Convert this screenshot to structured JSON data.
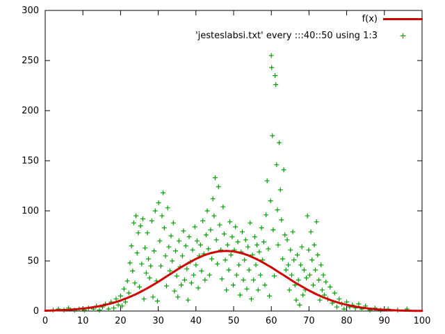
{
  "chart_data": {
    "type": "scatter",
    "title": "",
    "xlabel": "",
    "ylabel": "",
    "xlim": [
      0,
      100
    ],
    "ylim": [
      0,
      300
    ],
    "xticks": [
      0,
      10,
      20,
      30,
      40,
      50,
      60,
      70,
      80,
      90,
      100
    ],
    "yticks": [
      0,
      50,
      100,
      150,
      200,
      250,
      300
    ],
    "grid": false,
    "legend_position": "top-right-inside",
    "axis_color": "#000000",
    "series": [
      {
        "name": "f(x)",
        "type": "line",
        "color": "#d00000",
        "width": 3,
        "x": [
          0,
          2,
          4,
          6,
          8,
          10,
          12,
          14,
          16,
          18,
          20,
          22,
          24,
          26,
          28,
          30,
          32,
          34,
          36,
          38,
          40,
          42,
          44,
          46,
          48,
          50,
          52,
          54,
          56,
          58,
          60,
          62,
          64,
          66,
          68,
          70,
          72,
          74,
          76,
          78,
          80,
          82,
          84,
          86,
          88,
          90,
          92,
          94,
          96,
          98,
          100
        ],
        "y": [
          0.36,
          0.55,
          0.81,
          1.19,
          1.71,
          2.42,
          3.37,
          4.6,
          6.17,
          8.12,
          10.5,
          13.4,
          16.7,
          20.5,
          24.7,
          29.2,
          34,
          38.8,
          43.6,
          48,
          52,
          55.4,
          57.9,
          59.5,
          60,
          59.5,
          57.9,
          55.4,
          52,
          48,
          43.6,
          38.8,
          34,
          29.2,
          24.7,
          20.5,
          16.7,
          13.4,
          10.5,
          8.1,
          6.2,
          4.6,
          3.4,
          2.4,
          1.7,
          1.2,
          0.8,
          0.55,
          0.36,
          0.23,
          0.14
        ]
      },
      {
        "name": "'jesteslabsi.txt' every :::40::50 using 1:3",
        "type": "points",
        "marker": "plus",
        "color": "#00a000",
        "points": [
          [
            2.1,
            1
          ],
          [
            3.5,
            2
          ],
          [
            5,
            1
          ],
          [
            6.2,
            3
          ],
          [
            7.8,
            1
          ],
          [
            9,
            2
          ],
          [
            10.4,
            1
          ],
          [
            11.5,
            3
          ],
          [
            12.8,
            2
          ],
          [
            13.6,
            5
          ],
          [
            14.4,
            1
          ],
          [
            15.2,
            4
          ],
          [
            16,
            7
          ],
          [
            16.8,
            2
          ],
          [
            17.5,
            9
          ],
          [
            18.2,
            3
          ],
          [
            18.8,
            12
          ],
          [
            19.4,
            6
          ],
          [
            20,
            15
          ],
          [
            20.4,
            5
          ],
          [
            20.9,
            22
          ],
          [
            21.3,
            9
          ],
          [
            21.8,
            30
          ],
          [
            22.2,
            18
          ],
          [
            22.5,
            48
          ],
          [
            22.9,
            65
          ],
          [
            23.2,
            40
          ],
          [
            23.5,
            88
          ],
          [
            23.8,
            28
          ],
          [
            24.1,
            95
          ],
          [
            24.4,
            58
          ],
          [
            24.7,
            78
          ],
          [
            25,
            24
          ],
          [
            25.3,
            85
          ],
          [
            25.6,
            47
          ],
          [
            25.9,
            92
          ],
          [
            26.2,
            12
          ],
          [
            26.5,
            63
          ],
          [
            26.8,
            38
          ],
          [
            27.1,
            78
          ],
          [
            27.4,
            52
          ],
          [
            27.7,
            33
          ],
          [
            28,
            45
          ],
          [
            28.3,
            90
          ],
          [
            28.6,
            14
          ],
          [
            28.9,
            60
          ],
          [
            29.2,
            100
          ],
          [
            29.5,
            30
          ],
          [
            29.8,
            10
          ],
          [
            30.1,
            108
          ],
          [
            30.4,
            70
          ],
          [
            30.7,
            45
          ],
          [
            31,
            95
          ],
          [
            31.3,
            118
          ],
          [
            31.6,
            83
          ],
          [
            31.9,
            55
          ],
          [
            32.2,
            25
          ],
          [
            32.5,
            103
          ],
          [
            32.8,
            64
          ],
          [
            33.1,
            40
          ],
          [
            33.4,
            75
          ],
          [
            33.7,
            50
          ],
          [
            34,
            88
          ],
          [
            34.3,
            20
          ],
          [
            34.6,
            60
          ],
          [
            34.9,
            35
          ],
          [
            35.2,
            14
          ],
          [
            35.5,
            70
          ],
          [
            35.8,
            44
          ],
          [
            36.1,
            26
          ],
          [
            36.4,
            55
          ],
          [
            36.7,
            80
          ],
          [
            37,
            31
          ],
          [
            37.3,
            65
          ],
          [
            37.6,
            42
          ],
          [
            37.9,
            11
          ],
          [
            38.2,
            74
          ],
          [
            38.5,
            49
          ],
          [
            38.8,
            28
          ],
          [
            39.1,
            61
          ],
          [
            39.4,
            36
          ],
          [
            39.7,
            84
          ],
          [
            40,
            46
          ],
          [
            40.3,
            70
          ],
          [
            40.6,
            23
          ],
          [
            40.9,
            55
          ],
          [
            41.2,
            66
          ],
          [
            41.5,
            40
          ],
          [
            41.8,
            90
          ],
          [
            42.1,
            57
          ],
          [
            42.4,
            31
          ],
          [
            42.7,
            76
          ],
          [
            43,
            100
          ],
          [
            43.3,
            62
          ],
          [
            43.6,
            36
          ],
          [
            43.9,
            81
          ],
          [
            44.2,
            52
          ],
          [
            44.5,
            112
          ],
          [
            44.8,
            95
          ],
          [
            45.1,
            133
          ],
          [
            45.4,
            71
          ],
          [
            45.7,
            47
          ],
          [
            46,
            124
          ],
          [
            46.3,
            86
          ],
          [
            46.6,
            61
          ],
          [
            46.9,
            32
          ],
          [
            47.2,
            104
          ],
          [
            47.5,
            77
          ],
          [
            47.8,
            51
          ],
          [
            48.1,
            21
          ],
          [
            48.4,
            66
          ],
          [
            48.7,
            41
          ],
          [
            49,
            89
          ],
          [
            49.3,
            56
          ],
          [
            49.6,
            74
          ],
          [
            49.9,
            26
          ],
          [
            50.2,
            61
          ],
          [
            50.5,
            84
          ],
          [
            50.8,
            36
          ],
          [
            51.1,
            69
          ],
          [
            51.4,
            46
          ],
          [
            51.7,
            16
          ],
          [
            52,
            59
          ],
          [
            52.3,
            79
          ],
          [
            52.6,
            31
          ],
          [
            52.9,
            51
          ],
          [
            53.2,
            71
          ],
          [
            53.5,
            22
          ],
          [
            53.8,
            64
          ],
          [
            54.1,
            41
          ],
          [
            54.4,
            88
          ],
          [
            54.7,
            12
          ],
          [
            55,
            56
          ],
          [
            55.3,
            31
          ],
          [
            55.6,
            74
          ],
          [
            55.9,
            46
          ],
          [
            56.2,
            66
          ],
          [
            56.5,
            21
          ],
          [
            56.8,
            59
          ],
          [
            57.1,
            36
          ],
          [
            57.4,
            83
          ],
          [
            57.7,
            51
          ],
          [
            58,
            69
          ],
          [
            58.3,
            26
          ],
          [
            58.6,
            96
          ],
          [
            58.9,
            130
          ],
          [
            59.2,
            62
          ],
          [
            59.5,
            15
          ],
          [
            59.8,
            110
          ],
          [
            60,
            255
          ],
          [
            60.1,
            243
          ],
          [
            60.3,
            175
          ],
          [
            60.5,
            81
          ],
          [
            60.8,
            35
          ],
          [
            61,
            235
          ],
          [
            61.2,
            226
          ],
          [
            61.4,
            146
          ],
          [
            61.6,
            101
          ],
          [
            61.8,
            66
          ],
          [
            62.1,
            168
          ],
          [
            62.4,
            121
          ],
          [
            62.7,
            91
          ],
          [
            63,
            52
          ],
          [
            63.3,
            141
          ],
          [
            63.6,
            76
          ],
          [
            63.9,
            41
          ],
          [
            64.2,
            71
          ],
          [
            64.5,
            46
          ],
          [
            64.8,
            21
          ],
          [
            65.1,
            61
          ],
          [
            65.4,
            36
          ],
          [
            65.7,
            79
          ],
          [
            66,
            51
          ],
          [
            66.3,
            26
          ],
          [
            66.6,
            11
          ],
          [
            66.9,
            56
          ],
          [
            67.2,
            31
          ],
          [
            67.5,
            6
          ],
          [
            67.8,
            46
          ],
          [
            68.1,
            64
          ],
          [
            68.4,
            16
          ],
          [
            68.7,
            41
          ],
          [
            69,
            21
          ],
          [
            69.3,
            33
          ],
          [
            69.6,
            95
          ],
          [
            69.9,
            61
          ],
          [
            70.2,
            36
          ],
          [
            70.5,
            79
          ],
          [
            70.8,
            51
          ],
          [
            71.1,
            26
          ],
          [
            71.4,
            66
          ],
          [
            71.7,
            41
          ],
          [
            72,
            89
          ],
          [
            72.3,
            56
          ],
          [
            72.6,
            31
          ],
          [
            72.9,
            11
          ],
          [
            73.2,
            46
          ],
          [
            73.5,
            21
          ],
          [
            73.8,
            36
          ],
          [
            74.1,
            16
          ],
          [
            74.5,
            29
          ],
          [
            75,
            12
          ],
          [
            75.6,
            24
          ],
          [
            76.2,
            8
          ],
          [
            76.8,
            18
          ],
          [
            77.4,
            4
          ],
          [
            78,
            12
          ],
          [
            78.7,
            7
          ],
          [
            79.3,
            2
          ],
          [
            80,
            9
          ],
          [
            80.8,
            4
          ],
          [
            81.5,
            6
          ],
          [
            82.3,
            3
          ],
          [
            83.2,
            7
          ],
          [
            84,
            2
          ],
          [
            85,
            5
          ],
          [
            86.2,
            1
          ],
          [
            87.5,
            3
          ],
          [
            89,
            1
          ],
          [
            91,
            2
          ],
          [
            93.5,
            1
          ],
          [
            96,
            2
          ]
        ]
      }
    ]
  },
  "legend": {
    "entries": [
      {
        "label": "f(x)",
        "sample": "line",
        "color": "#d00000"
      },
      {
        "label": "'jesteslabsi.txt' every :::40::50 using 1:3",
        "sample": "plus",
        "color": "#00a000"
      }
    ]
  }
}
